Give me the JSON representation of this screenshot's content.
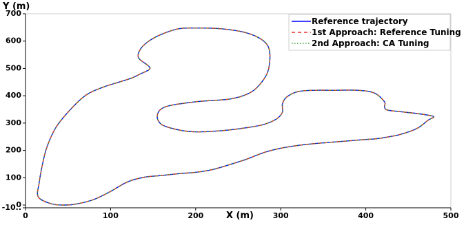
{
  "chart_data": {
    "type": "line",
    "xlabel": "X (m)",
    "ylabel": "Y (m)",
    "xlim": [
      0,
      500
    ],
    "ylim": [
      -10,
      700
    ],
    "xticks": [
      "0",
      "100",
      "200",
      "300",
      "400",
      "500"
    ],
    "yticks": [
      "-10..",
      "0",
      "100",
      "200",
      "300",
      "400",
      "500",
      "600",
      "700"
    ],
    "ytick_values": [
      -10,
      0,
      100,
      200,
      300,
      400,
      500,
      600,
      700
    ],
    "grid": false,
    "legend_position": "top-right",
    "track_points": [
      [
        15,
        30
      ],
      [
        30,
        5
      ],
      [
        45,
        0
      ],
      [
        60,
        4
      ],
      [
        80,
        20
      ],
      [
        100,
        50
      ],
      [
        120,
        85
      ],
      [
        140,
        102
      ],
      [
        160,
        108
      ],
      [
        180,
        115
      ],
      [
        200,
        120
      ],
      [
        220,
        130
      ],
      [
        240,
        148
      ],
      [
        260,
        168
      ],
      [
        280,
        192
      ],
      [
        300,
        208
      ],
      [
        320,
        218
      ],
      [
        340,
        225
      ],
      [
        360,
        230
      ],
      [
        380,
        235
      ],
      [
        400,
        240
      ],
      [
        410,
        242
      ],
      [
        420,
        246
      ],
      [
        440,
        258
      ],
      [
        460,
        280
      ],
      [
        473,
        310
      ],
      [
        480,
        322
      ],
      [
        475,
        328
      ],
      [
        460,
        335
      ],
      [
        440,
        342
      ],
      [
        425,
        348
      ],
      [
        422,
        360
      ],
      [
        422,
        378
      ],
      [
        410,
        410
      ],
      [
        390,
        420
      ],
      [
        360,
        420
      ],
      [
        340,
        420
      ],
      [
        320,
        415
      ],
      [
        307,
        395
      ],
      [
        302,
        370
      ],
      [
        302,
        340
      ],
      [
        295,
        315
      ],
      [
        280,
        295
      ],
      [
        260,
        283
      ],
      [
        240,
        275
      ],
      [
        220,
        270
      ],
      [
        200,
        268
      ],
      [
        180,
        275
      ],
      [
        160,
        295
      ],
      [
        155,
        330
      ],
      [
        165,
        360
      ],
      [
        200,
        378
      ],
      [
        240,
        388
      ],
      [
        262,
        408
      ],
      [
        275,
        440
      ],
      [
        285,
        490
      ],
      [
        287,
        560
      ],
      [
        280,
        600
      ],
      [
        260,
        630
      ],
      [
        230,
        645
      ],
      [
        200,
        648
      ],
      [
        180,
        645
      ],
      [
        160,
        625
      ],
      [
        145,
        600
      ],
      [
        135,
        570
      ],
      [
        133,
        538
      ],
      [
        145,
        508
      ],
      [
        145,
        495
      ],
      [
        135,
        480
      ],
      [
        125,
        465
      ],
      [
        110,
        450
      ],
      [
        90,
        430
      ],
      [
        70,
        400
      ],
      [
        50,
        340
      ],
      [
        35,
        280
      ],
      [
        25,
        210
      ],
      [
        20,
        150
      ],
      [
        16,
        80
      ],
      [
        15,
        30
      ]
    ],
    "series": [
      {
        "name": "Reference trajectory",
        "color": "#0000ff",
        "style": "solid"
      },
      {
        "name": "1st Approach: Reference Tuning",
        "color": "#e8302a",
        "style": "dashed"
      },
      {
        "name": "2nd Approach: CA Tuning",
        "color": "#2e9e2e",
        "style": "dotted"
      }
    ]
  }
}
